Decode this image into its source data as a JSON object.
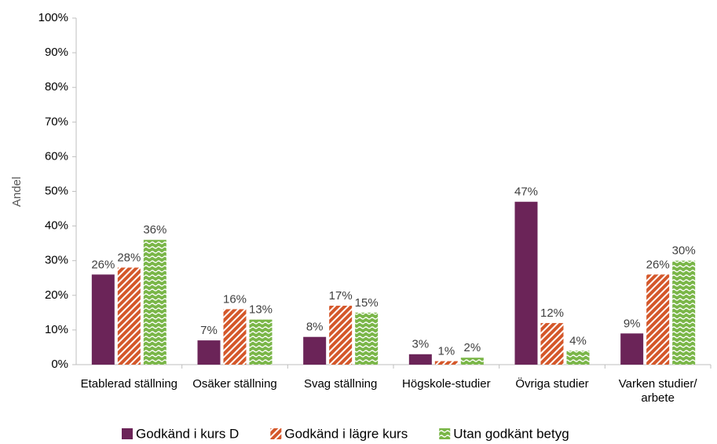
{
  "chart_data": {
    "type": "bar",
    "y_label": "Andel",
    "categories": [
      "Etablerad ställning",
      "Osäker ställning",
      "Svag ställning",
      "Högskole-studier",
      "Övriga studier",
      "Varken studier/ arbete"
    ],
    "series": [
      {
        "name": "Godkänd i kurs D",
        "color": "#6b2458",
        "pattern": "solid",
        "values": [
          26,
          7,
          8,
          3,
          47,
          9
        ],
        "value_labels": [
          "26%",
          "7%",
          "8%",
          "3%",
          "47%",
          "9%"
        ]
      },
      {
        "name": "Godkänd i lägre kurs",
        "color": "#d4572a",
        "pattern": "diagonal",
        "values": [
          28,
          16,
          17,
          1,
          12,
          26
        ],
        "value_labels": [
          "28%",
          "16%",
          "17%",
          "1%",
          "12%",
          "26%"
        ]
      },
      {
        "name": "Utan godkänt betyg",
        "color": "#7ab648",
        "pattern": "wave",
        "values": [
          36,
          13,
          15,
          2,
          4,
          30
        ],
        "value_labels": [
          "36%",
          "13%",
          "15%",
          "2%",
          "4%",
          "30%"
        ]
      }
    ],
    "ylim": [
      0,
      100
    ],
    "yticks": [
      {
        "value": 0,
        "label": "0%"
      },
      {
        "value": 10,
        "label": "10%"
      },
      {
        "value": 20,
        "label": "20%"
      },
      {
        "value": 30,
        "label": "30%"
      },
      {
        "value": 40,
        "label": "40%"
      },
      {
        "value": 50,
        "label": "50%"
      },
      {
        "value": 60,
        "label": "60%"
      },
      {
        "value": 70,
        "label": "70%"
      },
      {
        "value": 80,
        "label": "80%"
      },
      {
        "value": 90,
        "label": "90%"
      },
      {
        "value": 100,
        "label": "100%"
      }
    ],
    "grid": false,
    "legend": "bottom"
  }
}
